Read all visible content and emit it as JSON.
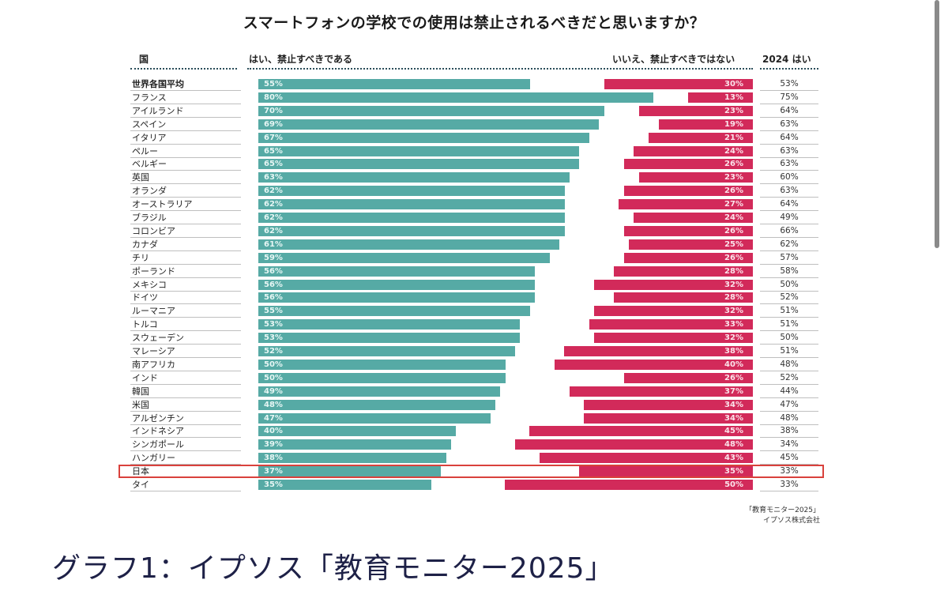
{
  "chart_data": {
    "type": "bar",
    "title": "スマートフォンの学校での使用は禁止されるべきだと思いますか？",
    "columns": {
      "country": "国",
      "yes": "はい、禁止すべきである",
      "no": "いいえ、禁止すべきではない",
      "prev": "2024 はい"
    },
    "xlim": [
      0,
      100
    ],
    "categories": [
      "世界各国平均",
      "フランス",
      "アイルランド",
      "スペイン",
      "イタリア",
      "ペルー",
      "ベルギー",
      "英国",
      "オランダ",
      "オーストラリア",
      "ブラジル",
      "コロンビア",
      "カナダ",
      "チリ",
      "ポーランド",
      "メキシコ",
      "ドイツ",
      "ルーマニア",
      "トルコ",
      "スウェーデン",
      "マレーシア",
      "南アフリカ",
      "インド",
      "韓国",
      "米国",
      "アルゼンチン",
      "インドネシア",
      "シンガポール",
      "ハンガリー",
      "日本",
      "タイ"
    ],
    "series": [
      {
        "name": "はい、禁止すべきである",
        "color": "#56aaa5",
        "values": [
          55,
          80,
          70,
          69,
          67,
          65,
          65,
          63,
          62,
          62,
          62,
          62,
          61,
          59,
          56,
          56,
          56,
          55,
          53,
          53,
          52,
          50,
          50,
          49,
          48,
          47,
          40,
          39,
          38,
          37,
          35
        ]
      },
      {
        "name": "いいえ、禁止すべきではない",
        "color": "#d22a5a",
        "values": [
          30,
          13,
          23,
          19,
          21,
          24,
          26,
          23,
          26,
          27,
          24,
          26,
          25,
          26,
          28,
          32,
          28,
          32,
          33,
          32,
          38,
          40,
          26,
          37,
          34,
          34,
          45,
          48,
          43,
          35,
          50
        ]
      },
      {
        "name": "2024 はい",
        "values": [
          53,
          75,
          64,
          63,
          64,
          63,
          63,
          60,
          63,
          64,
          49,
          66,
          62,
          57,
          58,
          50,
          52,
          51,
          51,
          50,
          51,
          48,
          52,
          44,
          47,
          48,
          38,
          34,
          45,
          33,
          33
        ]
      }
    ],
    "highlighted_category": "日本",
    "bold_category": "世界各国平均",
    "source": [
      "「教育モニター2025」",
      "イプソス株式会社"
    ]
  },
  "caption": "グラフ1：イプソス「教育モニター2025」",
  "colors": {
    "yes": "#56aaa5",
    "no": "#d22a5a",
    "highlight": "#d9413c",
    "caption": "#1e2147"
  }
}
